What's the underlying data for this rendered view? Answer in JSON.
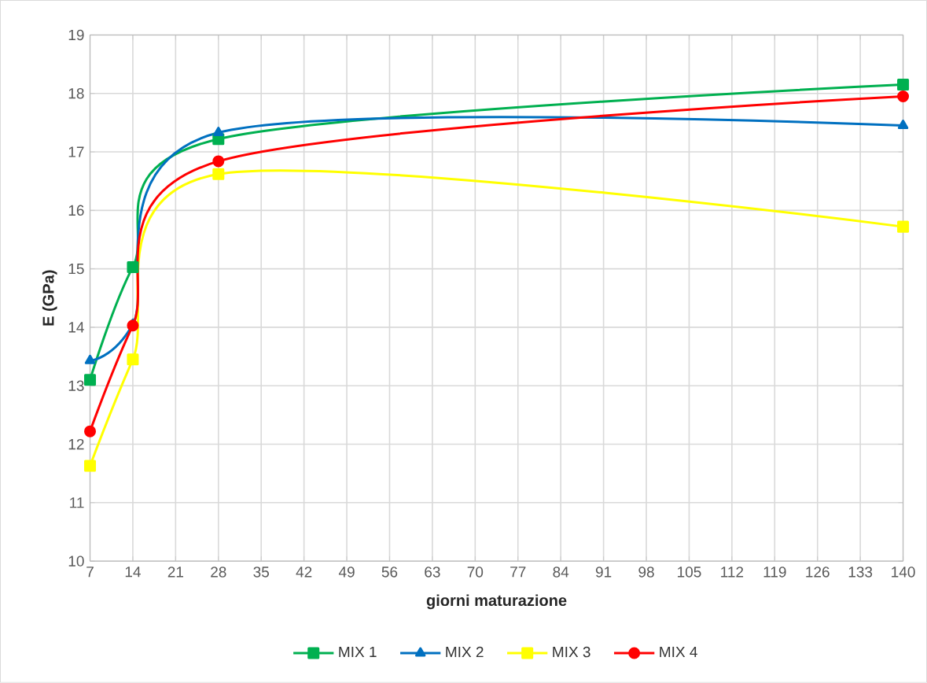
{
  "chart_data": {
    "type": "line",
    "xlabel": "giorni maturazione",
    "ylabel": "E  (GPa)",
    "x": [
      7,
      14,
      28,
      140
    ],
    "series": [
      {
        "name": "MIX 1",
        "color": "#00b050",
        "marker": "square",
        "values": [
          13.1,
          15.03,
          17.22,
          18.15
        ]
      },
      {
        "name": "MIX 2",
        "color": "#0070c0",
        "marker": "triangle",
        "values": [
          13.43,
          14.05,
          17.33,
          17.45
        ]
      },
      {
        "name": "MIX 3",
        "color": "#ffff00",
        "marker": "square",
        "values": [
          11.63,
          13.45,
          16.62,
          15.72
        ]
      },
      {
        "name": "MIX 4",
        "color": "#ff0000",
        "marker": "circle",
        "values": [
          12.22,
          14.03,
          16.84,
          17.95
        ]
      }
    ],
    "xlim": [
      7,
      140
    ],
    "xticks": [
      7,
      14,
      21,
      28,
      35,
      42,
      49,
      56,
      63,
      70,
      77,
      84,
      91,
      98,
      105,
      112,
      119,
      126,
      133,
      140
    ],
    "ylim": [
      10,
      19
    ],
    "yticks": [
      10,
      11,
      12,
      13,
      14,
      15,
      16,
      17,
      18,
      19
    ],
    "grid": true,
    "legend": "bottom"
  }
}
